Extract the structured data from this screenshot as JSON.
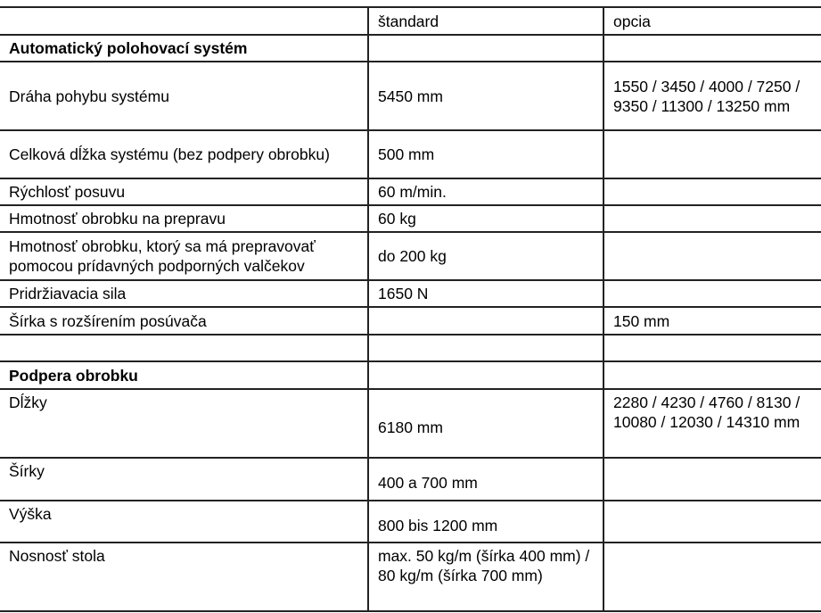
{
  "header": {
    "col1": "",
    "col2": "štandard",
    "col3": "opcia"
  },
  "rows": [
    {
      "label": "Automatický polohovací systém",
      "standard": "",
      "option": "",
      "bold": true
    },
    {
      "label": "Dráha pohybu systému",
      "standard": "5450 mm",
      "option": "1550 / 3450 / 4000 / 7250 / 9350 / 11300 / 13250 mm"
    },
    {
      "label": "Celková dĺžka systému (bez podpery obrobku)",
      "standard": "500 mm",
      "option": ""
    },
    {
      "label": "Rýchlosť posuvu",
      "standard": "60 m/min.",
      "option": ""
    },
    {
      "label": "Hmotnosť obrobku na prepravu",
      "standard": "60 kg",
      "option": ""
    },
    {
      "label": "Hmotnosť obrobku, ktorý sa má prepravovať pomocou prídavných podporných valčekov",
      "standard": "do 200 kg",
      "option": ""
    },
    {
      "label": "Pridržiavacia sila",
      "standard": "1650 N",
      "option": ""
    },
    {
      "label": "Šírka s rozšírením posúvača",
      "standard": "",
      "option": "150 mm"
    },
    {
      "label": "",
      "standard": "",
      "option": ""
    },
    {
      "label": "Podpera obrobku",
      "standard": "",
      "option": "",
      "bold": true
    },
    {
      "label": "Dĺžky",
      "standard": "6180 mm",
      "option": "2280 / 4230 / 4760 / 8130 / 10080 / 12030 / 14310 mm"
    },
    {
      "label": "Šírky",
      "standard": "400 a 700 mm",
      "option": ""
    },
    {
      "label": "Výška",
      "standard": "800 bis 1200 mm",
      "option": ""
    },
    {
      "label": "Nosnosť stola",
      "standard": "max. 50 kg/m (šírka 400 mm) / 80 kg/m (šírka 700 mm)",
      "option": ""
    }
  ]
}
